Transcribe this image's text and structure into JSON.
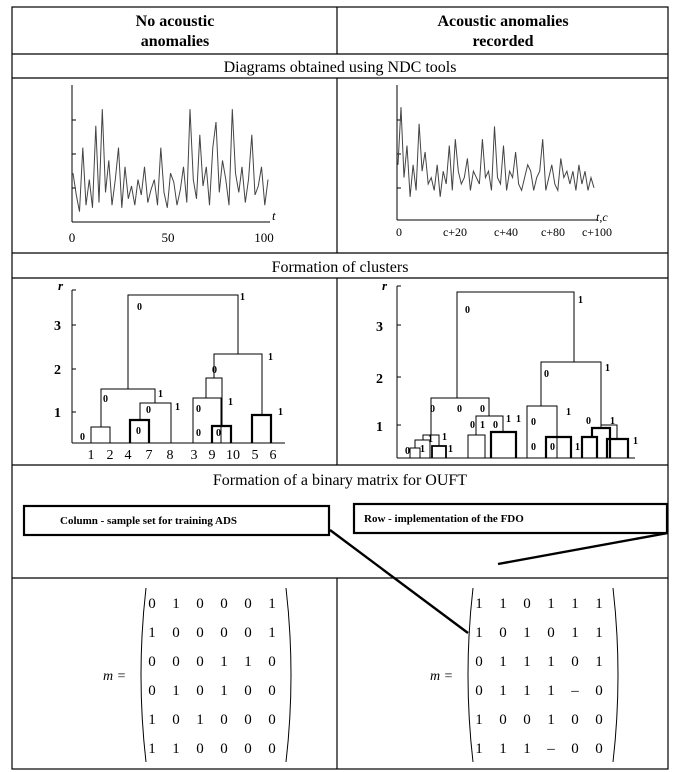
{
  "header": {
    "col1_line1": "No acoustic",
    "col1_line2": "anomalies",
    "col2_line1": "Acoustic anomalies",
    "col2_line2": "recorded"
  },
  "sections": {
    "ndc": "Diagrams obtained using NDC tools",
    "clusters": "Formation of clusters",
    "binary": "Formation of a binary matrix for OUFT"
  },
  "callouts": {
    "column": "Column - sample set for training ADS",
    "row": "Row - implementation of the FDO"
  },
  "ndc_left": {
    "axis_label": "t",
    "ticks": [
      "0",
      "50",
      "100"
    ],
    "series": [
      0.35,
      0.18,
      0.05,
      0.55,
      0.1,
      0.3,
      0.08,
      0.72,
      0.12,
      0.85,
      0.2,
      0.45,
      0.1,
      0.3,
      0.55,
      0.08,
      0.4,
      0.15,
      0.25,
      0.1,
      0.3,
      0.18,
      0.4,
      0.12,
      0.22,
      0.3,
      0.1,
      0.55,
      0.2,
      0.08,
      0.35,
      0.28,
      0.1,
      0.22,
      0.4,
      0.12,
      0.85,
      0.3,
      0.15,
      0.65,
      0.25,
      0.4,
      0.1,
      0.55,
      0.75,
      0.2,
      0.45,
      0.3,
      0.1,
      0.85,
      0.35,
      0.2,
      0.4,
      0.12,
      0.3,
      0.65,
      0.18,
      0.25,
      0.4,
      0.1,
      0.3
    ]
  },
  "ndc_right": {
    "axis_label": "t,c",
    "ticks": [
      "0",
      "c+20",
      "c+40",
      "c+80",
      "c+100"
    ],
    "series": [
      0.4,
      0.85,
      0.3,
      0.55,
      0.15,
      0.4,
      0.2,
      0.72,
      0.35,
      0.5,
      0.25,
      0.3,
      0.2,
      0.4,
      0.15,
      0.35,
      0.25,
      0.55,
      0.2,
      0.6,
      0.35,
      0.25,
      0.3,
      0.45,
      0.2,
      0.35,
      0.3,
      0.25,
      0.6,
      0.3,
      0.35,
      0.2,
      0.7,
      0.3,
      0.25,
      0.55,
      0.2,
      0.35,
      0.3,
      0.5,
      0.25,
      0.2,
      0.3,
      0.4,
      0.35,
      0.2,
      0.3,
      0.35,
      0.6,
      0.2,
      0.3,
      0.4,
      0.25,
      0.2,
      0.45,
      0.3,
      0.35,
      0.25,
      0.35,
      0.2,
      0.4,
      0.25,
      0.35,
      0.2,
      0.3,
      0.22
    ]
  },
  "cluster_left": {
    "axis_label": "r",
    "y_ticks": [
      "1",
      "2",
      "3"
    ],
    "leaves": [
      "1",
      "2",
      "4",
      "7",
      "8",
      "3",
      "9",
      "10",
      "5",
      "6"
    ],
    "labels_0": "0",
    "labels_1": "1"
  },
  "cluster_right": {
    "axis_label": "r",
    "y_ticks": [
      "1",
      "2",
      "3"
    ],
    "labels_0": "0",
    "labels_1": "1"
  },
  "matrix_left": {
    "label": "m =",
    "rows": [
      [
        "0",
        "1",
        "0",
        "0",
        "0",
        "1"
      ],
      [
        "1",
        "0",
        "0",
        "0",
        "0",
        "1"
      ],
      [
        "0",
        "0",
        "0",
        "1",
        "1",
        "0"
      ],
      [
        "0",
        "1",
        "0",
        "1",
        "0",
        "0"
      ],
      [
        "1",
        "0",
        "1",
        "0",
        "0",
        "0"
      ],
      [
        "1",
        "1",
        "0",
        "0",
        "0",
        "0"
      ]
    ]
  },
  "matrix_right": {
    "label": "m =",
    "rows": [
      [
        "1",
        "1",
        "0",
        "1",
        "1",
        "1"
      ],
      [
        "1",
        "0",
        "1",
        "0",
        "1",
        "1"
      ],
      [
        "0",
        "1",
        "1",
        "1",
        "0",
        "1"
      ],
      [
        "0",
        "1",
        "1",
        "1",
        "–",
        "0"
      ],
      [
        "1",
        "0",
        "0",
        "1",
        "0",
        "0"
      ],
      [
        "1",
        "1",
        "1",
        "–",
        "0",
        "0"
      ]
    ]
  }
}
